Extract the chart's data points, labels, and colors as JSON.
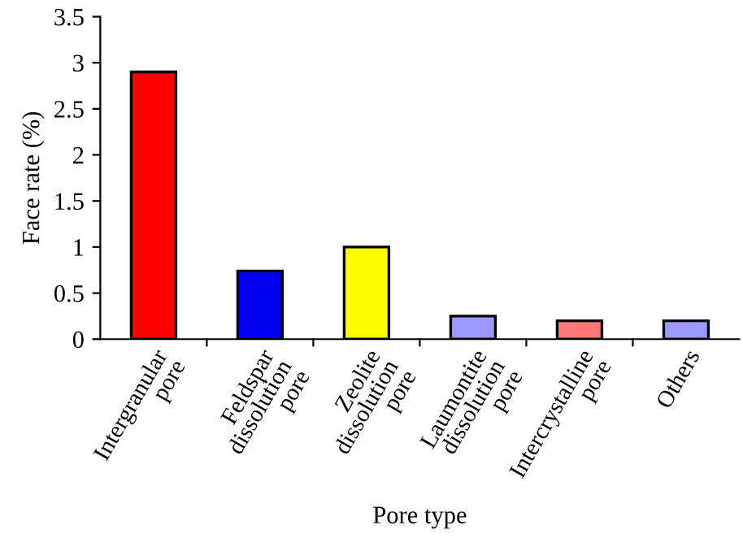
{
  "chart_data": {
    "type": "bar",
    "xlabel": "Pore type",
    "ylabel": "Face rate (%)",
    "categories": [
      "Intergranular\npore",
      "Feldspar\ndissolution\npore",
      "Zeolite\ndissolution\npore",
      "Laumontite\ndissolution\npore",
      "Intercrystalline\npore",
      "Others"
    ],
    "values": [
      2.9,
      0.74,
      1.0,
      0.25,
      0.2,
      0.2
    ],
    "colors": [
      "#ff0000",
      "#0000ee",
      "#ffff00",
      "#9999ff",
      "#ff7777",
      "#9999ff"
    ],
    "ylim": [
      0,
      3.5
    ],
    "yticks": [
      0,
      0.5,
      1,
      1.5,
      2,
      2.5,
      3,
      3.5
    ],
    "grid": false,
    "legend": false
  }
}
